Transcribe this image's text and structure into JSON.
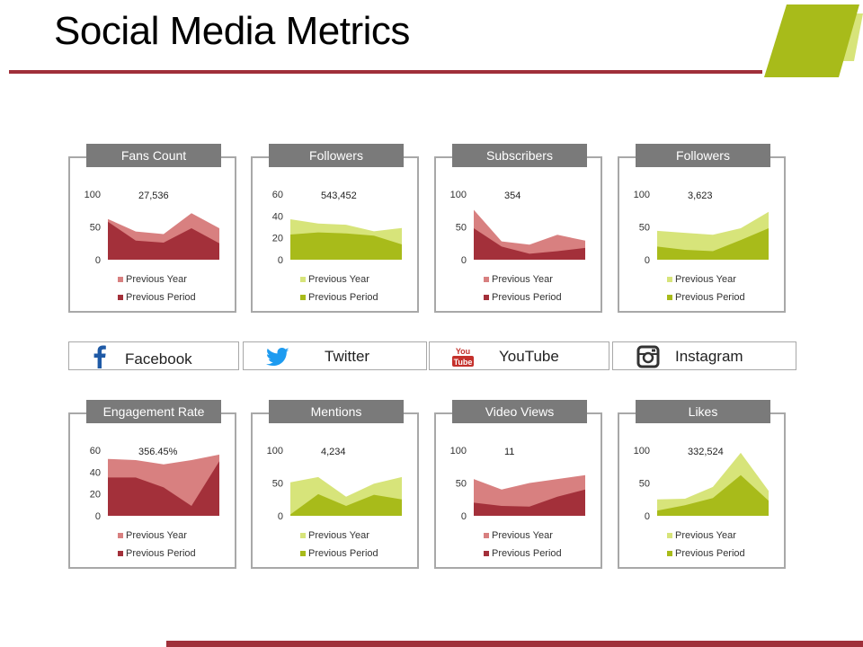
{
  "title": "Social Media Metrics",
  "colors": {
    "accent_red": "#a0303a",
    "red_light": "#d88080",
    "red_dark": "#a3303a",
    "green_light": "#d7e47a",
    "green_dark": "#a8bb1a",
    "header_gray": "#7a7a7a",
    "border_gray": "#a8a8a8"
  },
  "platforms": [
    {
      "label": "Facebook",
      "icon": "facebook-icon"
    },
    {
      "label": "Twitter",
      "icon": "twitter-icon"
    },
    {
      "label": "YouTube",
      "icon": "youtube-icon",
      "icon_text_top": "You",
      "icon_text_bottom": "Tube"
    },
    {
      "label": "Instagram",
      "icon": "instagram-icon"
    }
  ],
  "chart_data": [
    {
      "type": "area",
      "title": "Fans Count",
      "value_label": "27,536",
      "theme": "red",
      "yticks": [
        "100",
        "50",
        "0"
      ],
      "ylim": [
        0,
        100
      ],
      "series": [
        {
          "name": "Previous Year",
          "values": [
            62,
            43,
            39,
            71,
            48
          ]
        },
        {
          "name": "Previous Period",
          "values": [
            58,
            29,
            26,
            48,
            25
          ]
        }
      ]
    },
    {
      "type": "area",
      "title": "Followers",
      "value_label": "543,452",
      "theme": "green",
      "yticks": [
        "60",
        "40",
        "20",
        "0"
      ],
      "ylim": [
        0,
        60
      ],
      "series": [
        {
          "name": "Previous Year",
          "values": [
            37,
            33,
            32,
            26,
            29
          ]
        },
        {
          "name": "Previous Period",
          "values": [
            23,
            25,
            24,
            22,
            14
          ]
        }
      ]
    },
    {
      "type": "area",
      "title": "Subscribers",
      "value_label": "354",
      "theme": "red",
      "yticks": [
        "100",
        "50",
        "0"
      ],
      "ylim": [
        0,
        100
      ],
      "series": [
        {
          "name": "Previous Year",
          "values": [
            76,
            28,
            23,
            38,
            29
          ]
        },
        {
          "name": "Previous Period",
          "values": [
            48,
            20,
            9,
            13,
            18
          ]
        }
      ]
    },
    {
      "type": "area",
      "title": "Followers",
      "value_label": "3,623",
      "theme": "green",
      "yticks": [
        "100",
        "50",
        "0"
      ],
      "ylim": [
        0,
        100
      ],
      "series": [
        {
          "name": "Previous Year",
          "values": [
            44,
            41,
            38,
            48,
            73
          ]
        },
        {
          "name": "Previous Period",
          "values": [
            20,
            15,
            13,
            30,
            48
          ]
        }
      ]
    },
    {
      "type": "area",
      "title": "Engagement Rate",
      "value_label": "356.45%",
      "theme": "red",
      "yticks": [
        "60",
        "40",
        "20",
        "0"
      ],
      "ylim": [
        0,
        60
      ],
      "series": [
        {
          "name": "Previous Year",
          "values": [
            52,
            51,
            47,
            51,
            56
          ]
        },
        {
          "name": "Previous Period",
          "values": [
            35,
            35,
            26,
            9,
            50
          ]
        }
      ]
    },
    {
      "type": "area",
      "title": "Mentions",
      "value_label": "4,234",
      "theme": "green",
      "yticks": [
        "100",
        "50",
        "0"
      ],
      "ylim": [
        0,
        100
      ],
      "series": [
        {
          "name": "Previous Year",
          "values": [
            51,
            59,
            29,
            49,
            59
          ]
        },
        {
          "name": "Previous Period",
          "values": [
            2,
            33,
            15,
            32,
            25
          ]
        }
      ]
    },
    {
      "type": "area",
      "title": "Video Views",
      "value_label": "11",
      "theme": "red",
      "yticks": [
        "100",
        "50",
        "0"
      ],
      "ylim": [
        0,
        100
      ],
      "series": [
        {
          "name": "Previous Year",
          "values": [
            56,
            40,
            50,
            56,
            62
          ]
        },
        {
          "name": "Previous Period",
          "values": [
            20,
            15,
            14,
            29,
            40
          ]
        }
      ]
    },
    {
      "type": "area",
      "title": "Likes",
      "value_label": "332,524",
      "theme": "green",
      "yticks": [
        "100",
        "50",
        "0"
      ],
      "ylim": [
        0,
        100
      ],
      "series": [
        {
          "name": "Previous Year",
          "values": [
            25,
            26,
            44,
            96,
            38
          ]
        },
        {
          "name": "Previous Period",
          "values": [
            8,
            16,
            27,
            62,
            23
          ]
        }
      ]
    }
  ]
}
